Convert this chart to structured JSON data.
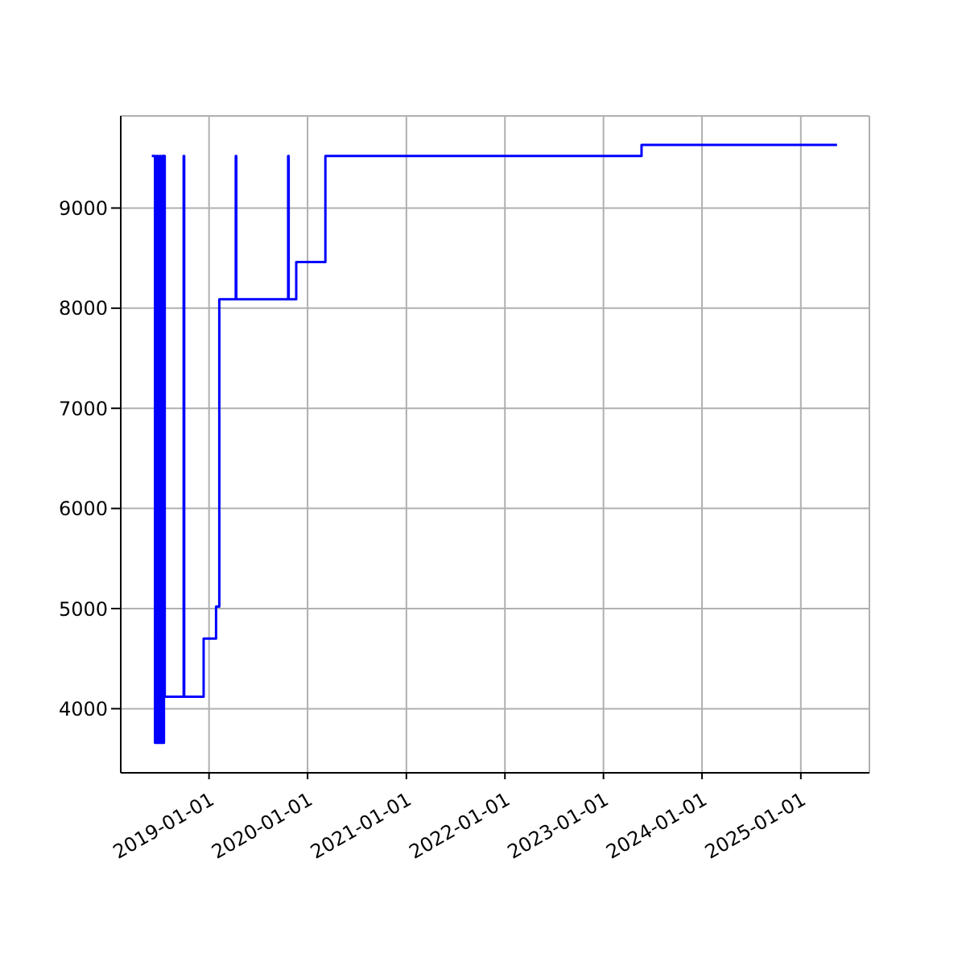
{
  "chart_data": {
    "type": "step",
    "x": [
      "2018-06-03",
      "2018-06-15",
      "2018-06-20",
      "2018-06-25",
      "2018-07-01",
      "2018-07-06",
      "2018-07-12",
      "2018-07-16",
      "2018-07-18",
      "2018-07-21",
      "2018-09-29",
      "2018-10-01",
      "2018-12-12",
      "2019-01-27",
      "2019-02-08",
      "2019-04-10",
      "2019-04-12",
      "2019-10-21",
      "2019-10-23",
      "2019-11-20",
      "2020-03-07",
      "2023-05-22",
      "2025-05-15"
    ],
    "series": [
      {
        "color": "#0000ff",
        "values": [
          9520,
          3660,
          9520,
          3660,
          9520,
          3660,
          9520,
          3660,
          9520,
          4120,
          9520,
          4120,
          4700,
          5020,
          8090,
          9520,
          8090,
          9520,
          8090,
          8460,
          9520,
          9630,
          9630
        ]
      }
    ],
    "xlim": [
      "2018-02-08",
      "2025-09-12"
    ],
    "xticks": [
      "2019-01-01",
      "2020-01-01",
      "2021-01-01",
      "2022-01-01",
      "2023-01-01",
      "2024-01-01",
      "2025-01-01"
    ],
    "ylim": [
      3360,
      9920
    ],
    "yticks": [
      4000,
      5000,
      6000,
      7000,
      8000,
      9000
    ],
    "grid": true,
    "marker": "none",
    "line_style": "solid"
  }
}
